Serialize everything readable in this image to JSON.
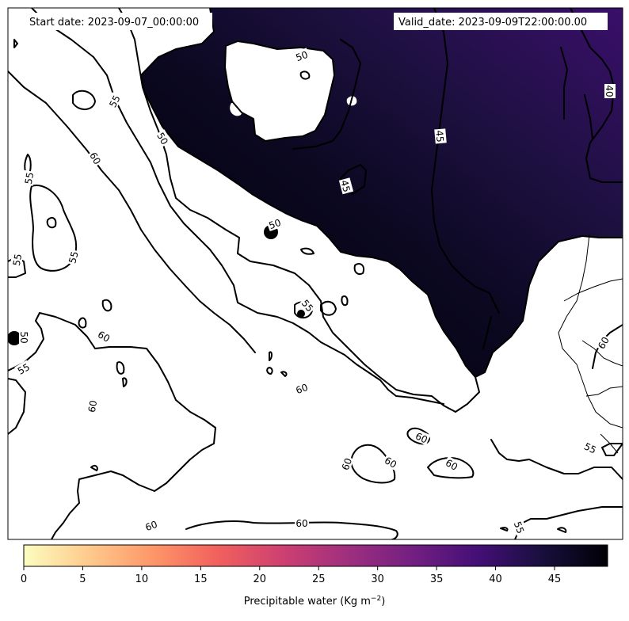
{
  "header": {
    "start_date": "Start date: 2023-09-07_00:00:00",
    "valid_date": "Valid_date: 2023-09-09T22:00:00.00"
  },
  "map": {
    "field": "precipitable water",
    "colormap": "magma_r",
    "contour_labels": [
      "50",
      "55",
      "60",
      "45",
      "40"
    ],
    "contour_label_list": [
      {
        "text": "55"
      },
      {
        "text": "50"
      },
      {
        "text": "60"
      },
      {
        "text": "55"
      },
      {
        "text": "55"
      },
      {
        "text": "55"
      },
      {
        "text": "50"
      },
      {
        "text": "45"
      },
      {
        "text": "45"
      },
      {
        "text": "40"
      },
      {
        "text": "50"
      },
      {
        "text": "55"
      },
      {
        "text": "60"
      },
      {
        "text": "50"
      },
      {
        "text": "55"
      },
      {
        "text": "60"
      },
      {
        "text": "60"
      },
      {
        "text": "60"
      },
      {
        "text": "60"
      },
      {
        "text": "60"
      },
      {
        "text": "60"
      },
      {
        "text": "60"
      },
      {
        "text": "55"
      },
      {
        "text": "60"
      },
      {
        "text": "60"
      },
      {
        "text": "50"
      },
      {
        "text": "55"
      }
    ]
  },
  "colorbar": {
    "label": "Precipitable water (Kg m",
    "label_sup": "−2",
    "label_end": ")",
    "ticks": [
      "0",
      "5",
      "10",
      "15",
      "20",
      "25",
      "30",
      "35",
      "40",
      "45"
    ],
    "range": [
      0,
      49.5
    ],
    "colors": [
      "#fcfdbf",
      "#feca8d",
      "#fd9668",
      "#f1605d",
      "#cd4071",
      "#9e2f7f",
      "#721f81",
      "#440f76",
      "#180f3d",
      "#000004"
    ]
  }
}
